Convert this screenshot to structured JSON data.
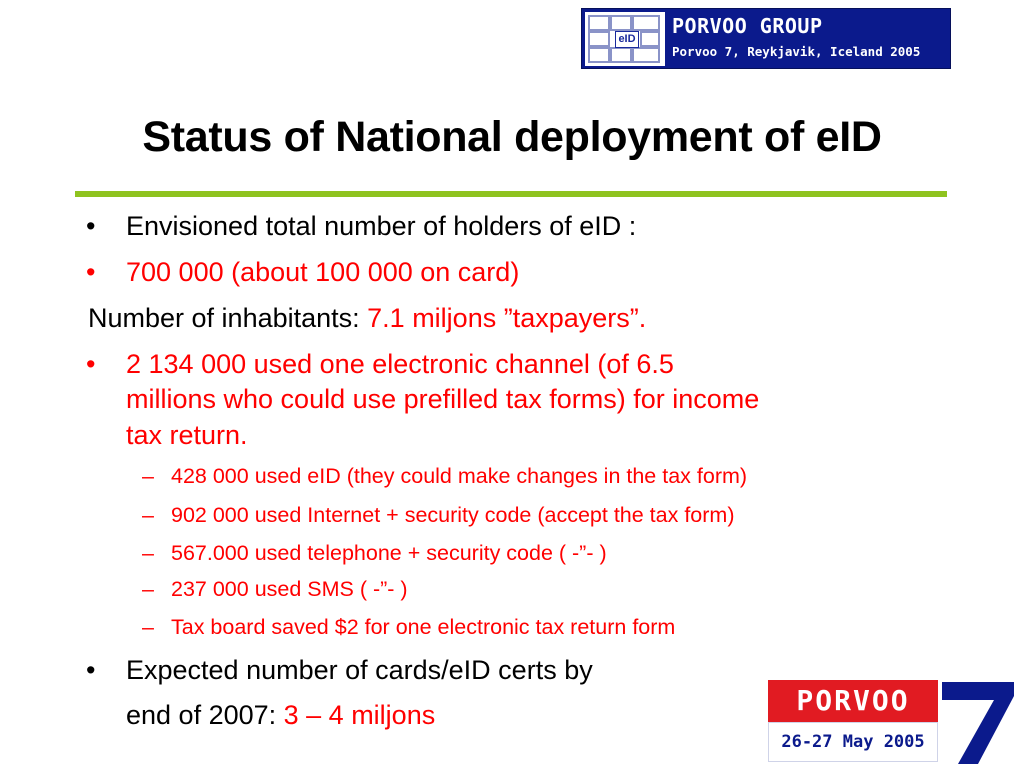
{
  "logo_top": {
    "badge": "eID",
    "line1": "PORVOO GROUP",
    "line2": "Porvoo 7, Reykjavik, Iceland 2005"
  },
  "title": "Status of National deployment of eID",
  "content": {
    "item1": {
      "bullet": "•",
      "text": "Envisioned total number of holders of eID :"
    },
    "item2": {
      "bullet": "•",
      "text": "700 000 (about 100 000 on card)"
    },
    "inhabitants": {
      "label": "Number of inhabitants: ",
      "value": "7.1 miljons ”taxpayers”."
    },
    "item3": {
      "bullet": "•",
      "lines": [
        "2 134 000 used one electronic channel (of 6.5",
        "millions who could use prefilled tax forms) for income",
        "tax return."
      ],
      "subitems": [
        "428 000 used eID (they could make changes in the tax form)",
        "902 000 used Internet + security code (accept the tax form)",
        "567.000 used telephone + security code ( -”- )",
        "237 000 used SMS ( -”- )",
        "Tax board saved $2 for one electronic tax return form"
      ],
      "dash": "–"
    },
    "item4": {
      "bullet": "•",
      "line1": "Expected number of cards/eID certs by",
      "line2_label": "end of 2007: ",
      "line2_value": "3 – 4 miljons"
    }
  },
  "logo_bottom": {
    "word": "PORVOO",
    "dates": "26-27 May 2005",
    "number": "7"
  },
  "colors": {
    "accent_rule": "#8fc31f",
    "highlight": "#ff0000",
    "logo_blue": "#0b1a8c",
    "logo_red": "#e11b22"
  }
}
